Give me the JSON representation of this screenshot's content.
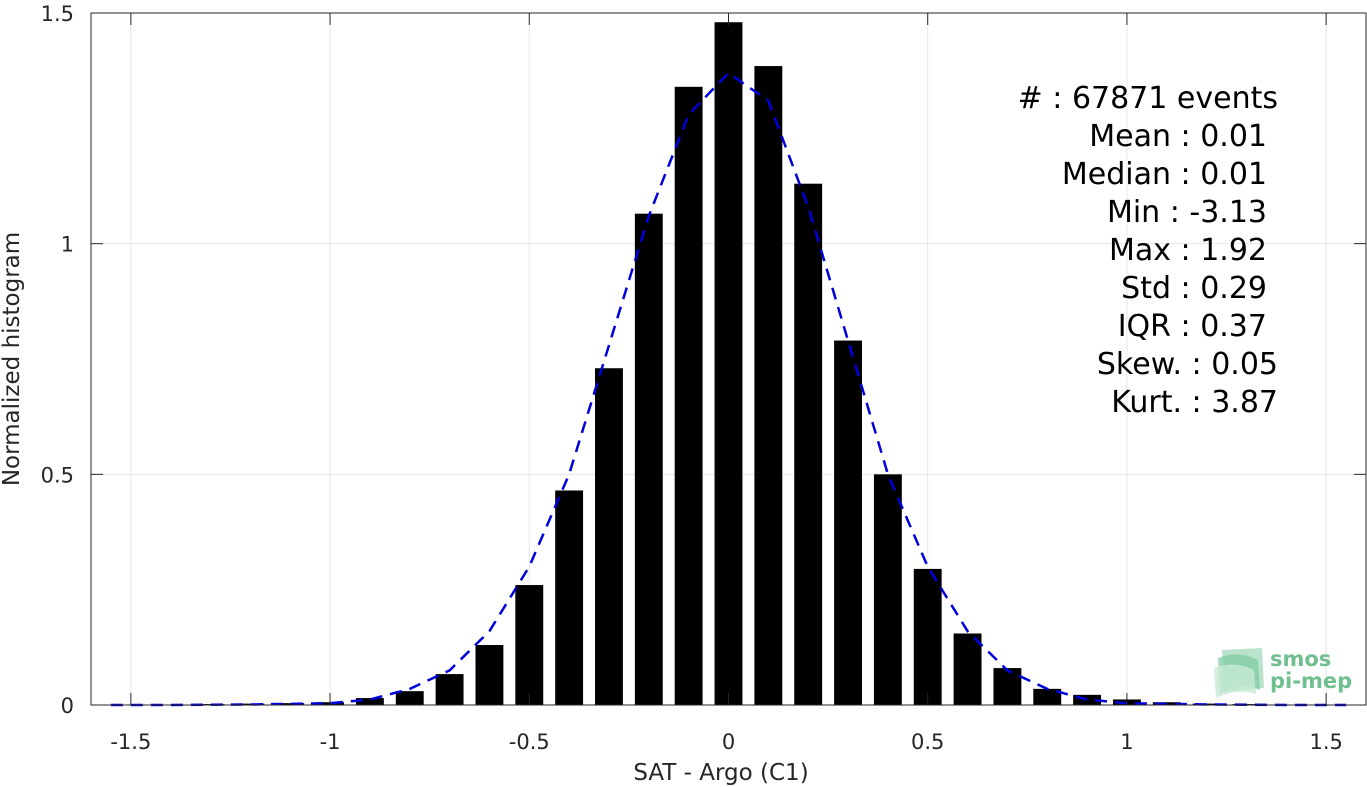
{
  "chart_data": {
    "type": "bar",
    "xlabel": "SAT - Argo (C1)",
    "ylabel": "Normalized histogram",
    "xlim": [
      -1.6,
      1.6
    ],
    "ylim": [
      0,
      1.5
    ],
    "xticks": [
      -1.5,
      -1,
      -0.5,
      0,
      0.5,
      1,
      1.5
    ],
    "xtick_labels": [
      "-1.5",
      "-1",
      "-0.5",
      "0",
      "0.5",
      "1",
      "1.5"
    ],
    "yticks": [
      0,
      0.5,
      1,
      1.5
    ],
    "ytick_labels": [
      "0",
      "0.5",
      "1",
      "1.5"
    ],
    "grid": true,
    "bar_width": 0.07,
    "bars": {
      "x": [
        -1.5,
        -1.4,
        -1.3,
        -1.2,
        -1.1,
        -1.0,
        -0.9,
        -0.8,
        -0.7,
        -0.6,
        -0.5,
        -0.4,
        -0.3,
        -0.2,
        -0.1,
        0.0,
        0.1,
        0.2,
        0.3,
        0.4,
        0.5,
        0.6,
        0.7,
        0.8,
        0.9,
        1.0,
        1.1,
        1.2,
        1.3,
        1.4,
        1.5
      ],
      "values": [
        0.001,
        0.001,
        0.002,
        0.003,
        0.004,
        0.006,
        0.015,
        0.03,
        0.067,
        0.13,
        0.26,
        0.465,
        0.73,
        1.065,
        1.34,
        1.48,
        1.385,
        1.13,
        0.79,
        0.5,
        0.295,
        0.155,
        0.08,
        0.035,
        0.022,
        0.012,
        0.006,
        0.003,
        0.002,
        0.001,
        0.001
      ]
    },
    "fit_line": {
      "style": "dashed",
      "color": "#0000dd",
      "x": [
        -1.55,
        -1.4,
        -1.2,
        -1.0,
        -0.9,
        -0.8,
        -0.7,
        -0.6,
        -0.5,
        -0.4,
        -0.3,
        -0.2,
        -0.1,
        0.0,
        0.1,
        0.2,
        0.3,
        0.4,
        0.5,
        0.6,
        0.7,
        0.8,
        0.9,
        1.0,
        1.2,
        1.4,
        1.55
      ],
      "y": [
        0.0,
        0.0,
        0.001,
        0.004,
        0.012,
        0.035,
        0.075,
        0.16,
        0.3,
        0.5,
        0.78,
        1.06,
        1.28,
        1.37,
        1.31,
        1.08,
        0.79,
        0.5,
        0.3,
        0.16,
        0.075,
        0.035,
        0.012,
        0.004,
        0.001,
        0.0,
        0.0
      ]
    },
    "bar_color": "#000000",
    "stats": [
      {
        "label": "#  : 67871 events"
      },
      {
        "label": "Mean : 0.01"
      },
      {
        "label": "Median : 0.01"
      },
      {
        "label": "Min : -3.13"
      },
      {
        "label": "Max : 1.92"
      },
      {
        "label": "Std : 0.29"
      },
      {
        "label": "IQR : 0.37"
      },
      {
        "label": "Skew. : 0.05"
      },
      {
        "label": "Kurt. : 3.87"
      }
    ]
  },
  "logo": {
    "line1": "smos",
    "line2": "pi-mep"
  }
}
